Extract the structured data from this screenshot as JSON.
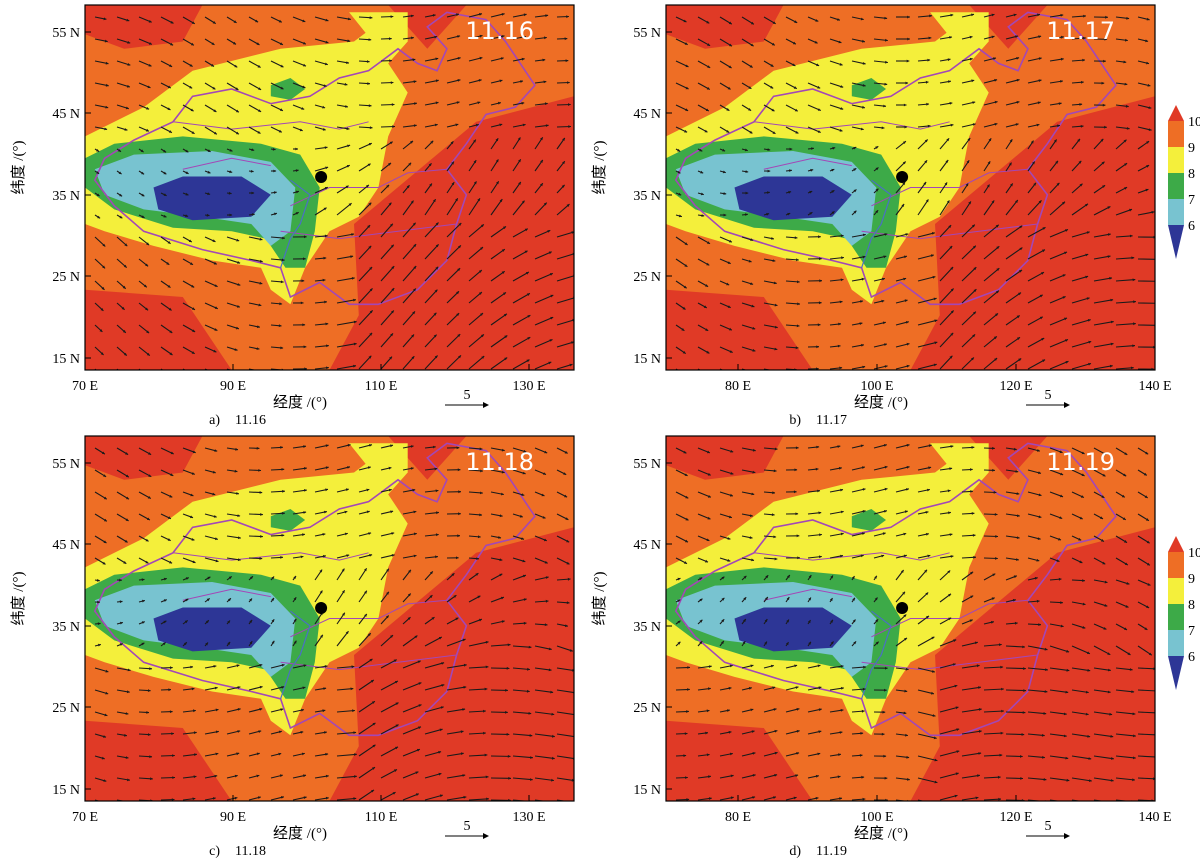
{
  "colors": {
    "lvl6": "#2d3696",
    "lvl7": "#78c3d0",
    "lvl8": "#3daa48",
    "lvl9": "#f4ef3b",
    "lvl10": "#ee6e25",
    "lvl11": "#e03a26",
    "border": "#a347b7",
    "river": "#4b6fc4",
    "vector": "#1a1a1a",
    "site_marker": "#000000"
  },
  "legend": {
    "labels": [
      "10",
      "9",
      "8",
      "7",
      "6"
    ]
  },
  "axis_title": {
    "x": "经度 /(°)",
    "y": "纬度 /(°)"
  },
  "vector_key": {
    "label": "5"
  },
  "chart_data": [
    {
      "type": "heatmap",
      "stamp": "11.16",
      "caption_letter": "a)",
      "caption_date": "11.16",
      "xlim": [
        70,
        140
      ],
      "ylim": [
        14,
        59
      ],
      "x_ticks": [
        "70 E",
        "90 E",
        "110 E",
        "130 E"
      ],
      "y_ticks": [
        "55 N",
        "45 N",
        "35 N",
        "25 N",
        "15 N"
      ],
      "has_legend": false,
      "site": {
        "lon": 103.8,
        "lat": 37.8
      }
    },
    {
      "type": "heatmap",
      "stamp": "11.17",
      "caption_letter": "b)",
      "caption_date": "11.17",
      "xlim": [
        70,
        140
      ],
      "ylim": [
        14,
        59
      ],
      "x_ticks": [
        "80 E",
        "100 E",
        "120 E",
        "140 E"
      ],
      "y_ticks": [
        "55 N",
        "45 N",
        "35 N",
        "25 N",
        "15 N"
      ],
      "has_legend": true,
      "site": {
        "lon": 103.8,
        "lat": 37.8
      }
    },
    {
      "type": "heatmap",
      "stamp": "11.18",
      "caption_letter": "c)",
      "caption_date": "11.18",
      "xlim": [
        70,
        140
      ],
      "ylim": [
        14,
        59
      ],
      "x_ticks": [
        "70 E",
        "90 E",
        "110 E",
        "130 E"
      ],
      "y_ticks": [
        "55 N",
        "45 N",
        "35 N",
        "25 N",
        "15 N"
      ],
      "has_legend": false,
      "site": {
        "lon": 103.8,
        "lat": 37.8
      }
    },
    {
      "type": "heatmap",
      "stamp": "11.19",
      "caption_letter": "d)",
      "caption_date": "11.19",
      "xlim": [
        70,
        140
      ],
      "ylim": [
        14,
        59
      ],
      "x_ticks": [
        "80 E",
        "100 E",
        "120 E",
        "140 E"
      ],
      "y_ticks": [
        "55 N",
        "45 N",
        "35 N",
        "25 N",
        "15 N"
      ],
      "has_legend": true,
      "site": {
        "lon": 103.8,
        "lat": 37.8
      }
    }
  ]
}
